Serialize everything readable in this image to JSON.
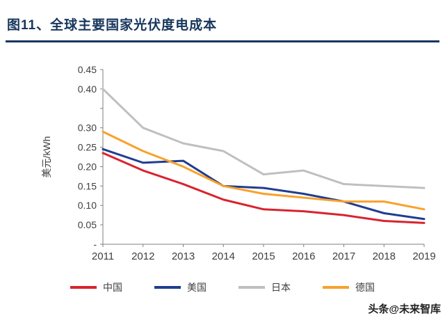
{
  "header": {
    "title": "图11、全球主要国家光伏度电成本",
    "accent_color": "#16365c"
  },
  "watermark": {
    "text": "头条@未来智库"
  },
  "chart_data": {
    "type": "line",
    "title": "图11、全球主要国家光伏度电成本",
    "xlabel": "",
    "ylabel": "美元/kWh",
    "x": [
      "2011",
      "2012",
      "2013",
      "2014",
      "2015",
      "2016",
      "2017",
      "2018",
      "2019"
    ],
    "ylim": [
      0,
      0.45
    ],
    "grid": false,
    "legend_position": "bottom",
    "axis_color": "#7f7f7f",
    "y_ticks": [
      {
        "value": 0.45,
        "label": "0.45"
      },
      {
        "value": 0.4,
        "label": "0.40"
      },
      {
        "value": 0.35,
        "label": ""
      },
      {
        "value": 0.3,
        "label": "0.30"
      },
      {
        "value": 0.25,
        "label": "0.25"
      },
      {
        "value": 0.2,
        "label": "0.20"
      },
      {
        "value": 0.15,
        "label": "0.15"
      },
      {
        "value": 0.1,
        "label": "0.10"
      },
      {
        "value": 0.05,
        "label": "0.05"
      },
      {
        "value": 0.0,
        "label": "-"
      }
    ],
    "series": [
      {
        "name": "中国",
        "color": "#d9232e",
        "values": [
          0.235,
          0.19,
          0.155,
          0.115,
          0.09,
          0.085,
          0.075,
          0.06,
          0.055
        ]
      },
      {
        "name": "美国",
        "color": "#1f3d90",
        "values": [
          0.245,
          0.21,
          0.215,
          0.15,
          0.145,
          0.13,
          0.11,
          0.08,
          0.065
        ]
      },
      {
        "name": "日本",
        "color": "#bfbfbf",
        "values": [
          0.4,
          0.3,
          0.26,
          0.24,
          0.18,
          0.19,
          0.155,
          0.15,
          0.145
        ]
      },
      {
        "name": "德国",
        "color": "#f9a12a",
        "values": [
          0.29,
          0.24,
          0.2,
          0.15,
          0.13,
          0.12,
          0.11,
          0.11,
          0.09
        ]
      }
    ]
  }
}
